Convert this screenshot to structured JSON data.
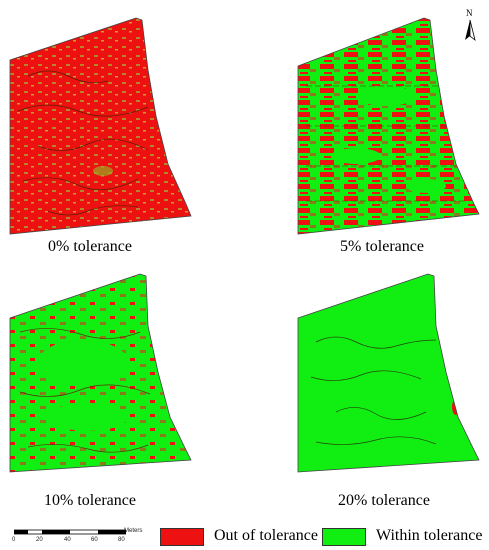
{
  "north_arrow": {
    "label": "N"
  },
  "panels": [
    {
      "caption": "0% tolerance"
    },
    {
      "caption": "5% tolerance"
    },
    {
      "caption": "10% tolerance"
    },
    {
      "caption": "20% tolerance"
    }
  ],
  "legend": [
    {
      "label": "Out of tolerance",
      "color": "#ee1111"
    },
    {
      "label": "Within tolerance",
      "color": "#11ee11"
    }
  ],
  "scale_bar": {
    "unit": "Meters",
    "ticks": [
      "0",
      "20",
      "40",
      "60",
      "80"
    ]
  },
  "colors": {
    "out": "#ee1111",
    "within": "#11ee11",
    "mixed": "#9a8a20",
    "outline": "#333333"
  }
}
